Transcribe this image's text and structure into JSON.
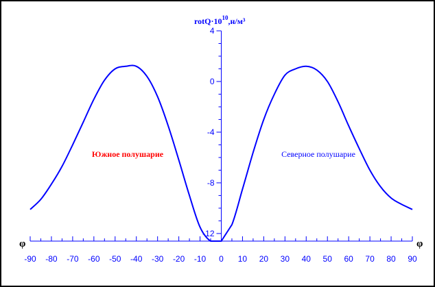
{
  "chart_data": {
    "type": "line",
    "ylabel_main": "rotQ",
    "ylabel_dot": "·",
    "ylabel_base": "10",
    "ylabel_exp": "10",
    "ylabel_comma": ",",
    "ylabel_unit": "н/м³",
    "xlabel_left": "φ",
    "xlabel_right": "φ",
    "xlim": [
      -90,
      90
    ],
    "ylim": [
      -12.6,
      4
    ],
    "x_ticks": [
      -90,
      -80,
      -70,
      -60,
      -50,
      -40,
      -30,
      -20,
      -10,
      0,
      10,
      20,
      30,
      40,
      50,
      60,
      70,
      80,
      90
    ],
    "y_ticks": [
      4,
      0,
      -4,
      -8,
      -12
    ],
    "annotations": [
      {
        "text": "Южное полушарие",
        "x": -65,
        "y": -5.8,
        "color": "#ff0000"
      },
      {
        "text": "Северное полушарие",
        "x": 65,
        "y": -5.8,
        "color": "#0000ff"
      }
    ],
    "series": [
      {
        "color": "#0000ff",
        "x": [
          -90,
          -85,
          -80,
          -75,
          -70,
          -65,
          -60,
          -55,
          -50,
          -45,
          -40,
          -35,
          -30,
          -25,
          -20,
          -15,
          -10,
          -5,
          0,
          5,
          10,
          15,
          20,
          25,
          30,
          35,
          40,
          45,
          50,
          55,
          60,
          65,
          70,
          75,
          80,
          85,
          90
        ],
        "y": [
          -10.1,
          -9.3,
          -8.1,
          -6.7,
          -5.0,
          -3.2,
          -1.4,
          0.1,
          1.0,
          1.2,
          1.2,
          0.4,
          -1.2,
          -3.5,
          -6.2,
          -9.0,
          -11.5,
          -12.6,
          -12.6,
          -11.3,
          -8.5,
          -5.6,
          -3.0,
          -1.0,
          0.5,
          1.0,
          1.2,
          0.9,
          0.0,
          -1.6,
          -3.5,
          -5.3,
          -7.0,
          -8.3,
          -9.2,
          -9.7,
          -10.1
        ]
      }
    ]
  }
}
